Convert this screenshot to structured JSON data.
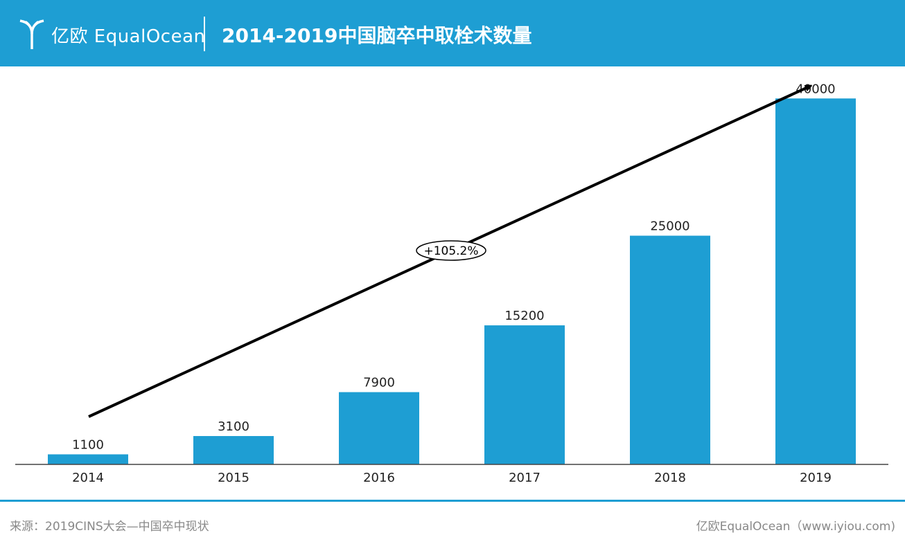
{
  "header": {
    "logo_text": "亿欧 EqualOcean",
    "title": "2014-2019中国脑卒中取栓术数量"
  },
  "colors": {
    "brand": "#1e9ed3",
    "bar": "#1e9ed3",
    "arrow": "#000000",
    "footer_text": "#888888"
  },
  "chart_data": {
    "type": "bar",
    "title": "2014-2019中国脑卒中取栓术数量",
    "categories": [
      "2014",
      "2015",
      "2016",
      "2017",
      "2018",
      "2019"
    ],
    "values": [
      1100,
      3100,
      7900,
      15200,
      25000,
      40000
    ],
    "xlabel": "",
    "ylabel": "",
    "ylim": [
      0,
      43500
    ],
    "grid": false,
    "annotation": {
      "text": "+105.2%",
      "type": "growth-arrow"
    }
  },
  "footer": {
    "source": "来源：2019CINS大会—中国卒中现状",
    "credit": "亿欧EqualOcean（www.iyiou.com)"
  }
}
